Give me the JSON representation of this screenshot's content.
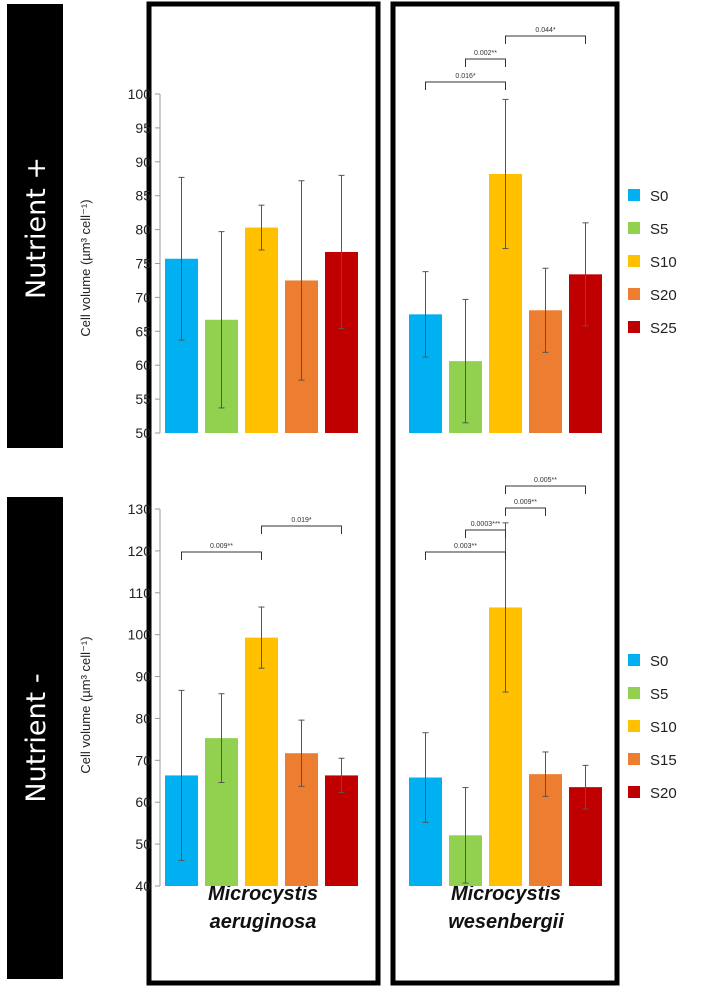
{
  "colors": {
    "S0": "#00b0f0",
    "S5": "#92d050",
    "S10": "#ffc000",
    "S15": "#ed7d31",
    "S20": "#ed7d31",
    "S25": "#c00000",
    "S20_red": "#c00000"
  },
  "rows": {
    "top": {
      "label": "Nutrient +",
      "ylabel": "Cell volume (µm³ cell⁻¹)"
    },
    "bottom": {
      "label": "Nutrient -",
      "ylabel": "Cell volume (µm³ cell⁻¹)"
    }
  },
  "species": [
    {
      "line1": "Microcystis",
      "line2": "aeruginosa"
    },
    {
      "line1": "Microcystis",
      "line2": "wesenbergii"
    }
  ],
  "legends": {
    "top": [
      {
        "label": "S0",
        "color": "#00b0f0"
      },
      {
        "label": "S5",
        "color": "#92d050"
      },
      {
        "label": "S10",
        "color": "#ffc000"
      },
      {
        "label": "S20",
        "color": "#ed7d31"
      },
      {
        "label": "S25",
        "color": "#c00000"
      }
    ],
    "bottom": [
      {
        "label": "S0",
        "color": "#00b0f0"
      },
      {
        "label": "S5",
        "color": "#92d050"
      },
      {
        "label": "S10",
        "color": "#ffc000"
      },
      {
        "label": "S15",
        "color": "#ed7d31"
      },
      {
        "label": "S20",
        "color": "#c00000"
      }
    ]
  },
  "chart_data": [
    {
      "type": "bar",
      "row": "Nutrient +",
      "species": "Microcystis aeruginosa",
      "categories": [
        "S0",
        "S5",
        "S10",
        "S20",
        "S25"
      ],
      "values": [
        75.7,
        66.7,
        80.3,
        72.5,
        76.7
      ],
      "errors": [
        12.0,
        13.0,
        3.3,
        14.7,
        11.3
      ],
      "ylim": [
        50,
        100
      ],
      "yticks": [
        50,
        55,
        60,
        65,
        70,
        75,
        80,
        85,
        90,
        95,
        100
      ],
      "ylabel": "Cell volume (µm³ cell⁻¹)",
      "significance": []
    },
    {
      "type": "bar",
      "row": "Nutrient +",
      "species": "Microcystis wesenbergii",
      "categories": [
        "S0",
        "S5",
        "S10",
        "S20",
        "S25"
      ],
      "values": [
        67.5,
        60.6,
        88.2,
        68.1,
        73.4
      ],
      "errors": [
        6.3,
        9.1,
        11.0,
        6.2,
        7.6
      ],
      "ylim": [
        50,
        100
      ],
      "significance": [
        {
          "from": 0,
          "to": 2,
          "label": "0.016*",
          "level": 0
        },
        {
          "from": 1,
          "to": 2,
          "label": "0.002**",
          "level": 1
        },
        {
          "from": 2,
          "to": 4,
          "label": "0.044*",
          "level": 2
        }
      ]
    },
    {
      "type": "bar",
      "row": "Nutrient -",
      "species": "Microcystis aeruginosa",
      "categories": [
        "S0",
        "S5",
        "S10",
        "S15",
        "S20"
      ],
      "values": [
        66.4,
        75.3,
        99.3,
        71.7,
        66.4
      ],
      "errors": [
        20.3,
        10.6,
        7.3,
        7.9,
        4.1
      ],
      "ylim": [
        40,
        130
      ],
      "yticks": [
        40,
        50,
        60,
        70,
        80,
        90,
        100,
        110,
        120,
        130
      ],
      "ylabel": "Cell volume (µm³ cell⁻¹)",
      "significance": [
        {
          "from": 0,
          "to": 2,
          "label": "0.009**",
          "level": 0
        },
        {
          "from": 2,
          "to": 4,
          "label": "0.019*",
          "level": 1
        }
      ]
    },
    {
      "type": "bar",
      "row": "Nutrient -",
      "species": "Microcystis wesenbergii",
      "categories": [
        "S0",
        "S5",
        "S10",
        "S15",
        "S20"
      ],
      "values": [
        65.9,
        52.1,
        106.5,
        66.7,
        63.6
      ],
      "errors": [
        10.7,
        11.4,
        20.2,
        5.3,
        5.2
      ],
      "ylim": [
        40,
        130
      ],
      "significance": [
        {
          "from": 0,
          "to": 2,
          "label": "0.003**",
          "level": 0
        },
        {
          "from": 1,
          "to": 2,
          "label": "0.0003***",
          "level": 1
        },
        {
          "from": 2,
          "to": 3,
          "label": "0.009**",
          "level": 2
        },
        {
          "from": 2,
          "to": 4,
          "label": "0.005**",
          "level": 3
        }
      ]
    }
  ]
}
